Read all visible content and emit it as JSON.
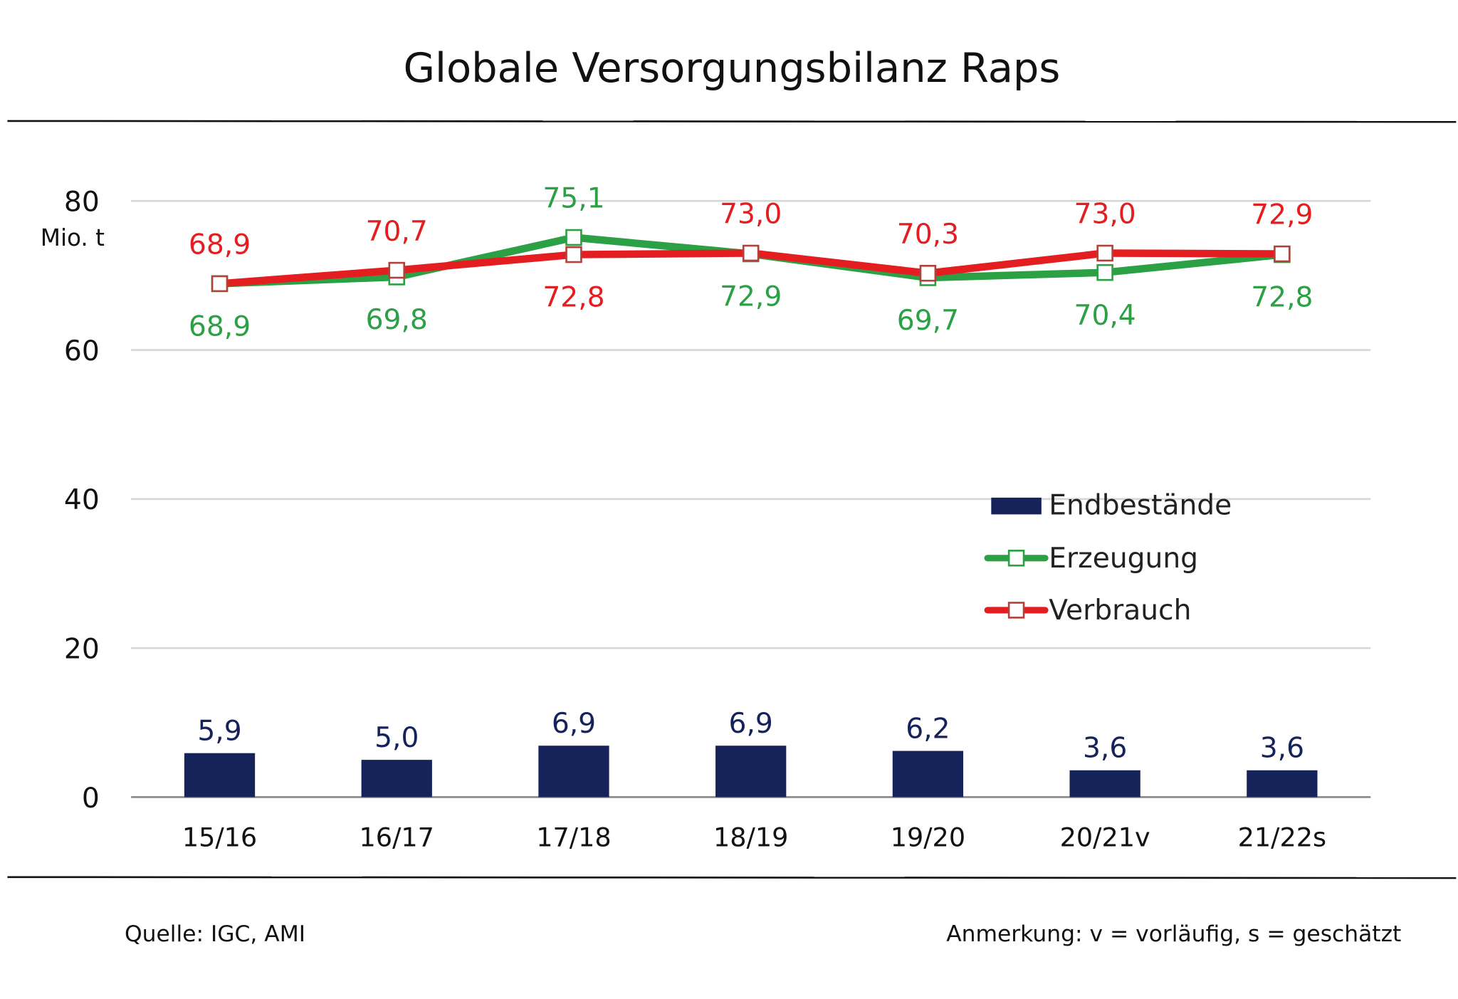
{
  "chart_data": {
    "type": "bar+line",
    "title": "Globale Versorgungsbilanz Raps",
    "ylabel": "Mio. t",
    "ylim": [
      0,
      80
    ],
    "yticks": [
      "0",
      "20",
      "40",
      "60",
      "80"
    ],
    "categories": [
      "15/16",
      "16/17",
      "17/18",
      "18/19",
      "19/20",
      "20/21v",
      "21/22s"
    ],
    "series": [
      {
        "name": "Endbestände",
        "kind": "bar",
        "color": "#16225a",
        "values": [
          5.9,
          5.0,
          6.9,
          6.9,
          6.2,
          3.6,
          3.6
        ],
        "labels": [
          "5,9",
          "5,0",
          "6,9",
          "6,9",
          "6,2",
          "3,6",
          "3,6"
        ]
      },
      {
        "name": "Erzeugung",
        "kind": "line",
        "color": "#2ca044",
        "values": [
          68.9,
          69.8,
          75.1,
          72.9,
          69.7,
          70.4,
          72.8
        ],
        "labels": [
          "68,9",
          "69,8",
          "75,1",
          "72,9",
          "69,7",
          "70,4",
          "72,8"
        ]
      },
      {
        "name": "Verbrauch",
        "kind": "line",
        "color": "#e41e20",
        "values": [
          68.9,
          70.7,
          72.8,
          73.0,
          70.3,
          73.0,
          72.9
        ],
        "labels": [
          "68,9",
          "70,7",
          "72,8",
          "73,0",
          "70,3",
          "73,0",
          "72,9"
        ]
      }
    ],
    "grid": true,
    "legend": "center-right"
  },
  "footer": {
    "source": "Quelle: IGC, AMI",
    "note": "Anmerkung: v = vorläufig, s = geschätzt"
  }
}
